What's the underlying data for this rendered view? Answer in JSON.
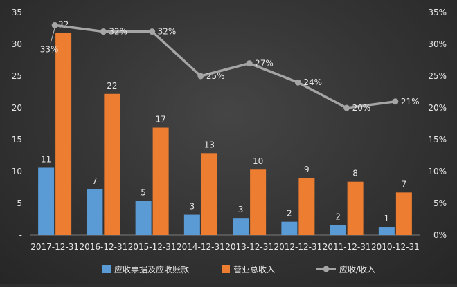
{
  "chart_data": {
    "type": "bar",
    "categories": [
      "2017-12-31",
      "2016-12-31",
      "2015-12-31",
      "2014-12-31",
      "2013-12-31",
      "2012-12-31",
      "2011-12-31",
      "2010-12-31"
    ],
    "series": [
      {
        "name": "应收票据及应收账款",
        "kind": "bar",
        "axis": "left",
        "color": "#5b9bd5",
        "values": [
          10.6,
          7.2,
          5.4,
          3.2,
          2.7,
          2.1,
          1.6,
          1.3
        ],
        "labels": [
          "11",
          "7",
          "5",
          "3",
          "3",
          "2",
          "2",
          "1"
        ]
      },
      {
        "name": "营业总收入",
        "kind": "bar",
        "axis": "left",
        "color": "#ed7d31",
        "values": [
          31.8,
          22.2,
          16.9,
          12.9,
          10.3,
          9.0,
          8.4,
          6.7
        ],
        "labels": [
          "32",
          "22",
          "17",
          "13",
          "10",
          "9",
          "8",
          "7"
        ]
      },
      {
        "name": "应收/收入",
        "kind": "line",
        "axis": "right",
        "color": "#a5a5a5",
        "values": [
          0.33,
          0.32,
          0.32,
          0.25,
          0.27,
          0.24,
          0.2,
          0.21
        ],
        "labels": [
          "33%",
          "32%",
          "32%",
          "25%",
          "27%",
          "24%",
          "20%",
          "21%"
        ]
      }
    ],
    "y_left": {
      "ylim": [
        0,
        35
      ],
      "tick_labels": [
        "-",
        "5",
        "10",
        "15",
        "20",
        "25",
        "30",
        "35"
      ],
      "tick_values": [
        0,
        5,
        10,
        15,
        20,
        25,
        30,
        35
      ]
    },
    "y_right": {
      "ylim": [
        0,
        0.35
      ],
      "tick_labels": [
        "0%",
        "5%",
        "10%",
        "15%",
        "20%",
        "25%",
        "30%",
        "35%"
      ],
      "tick_values": [
        0,
        0.05,
        0.1,
        0.15,
        0.2,
        0.25,
        0.3,
        0.35
      ]
    },
    "grid": false,
    "legend": "bottom"
  }
}
